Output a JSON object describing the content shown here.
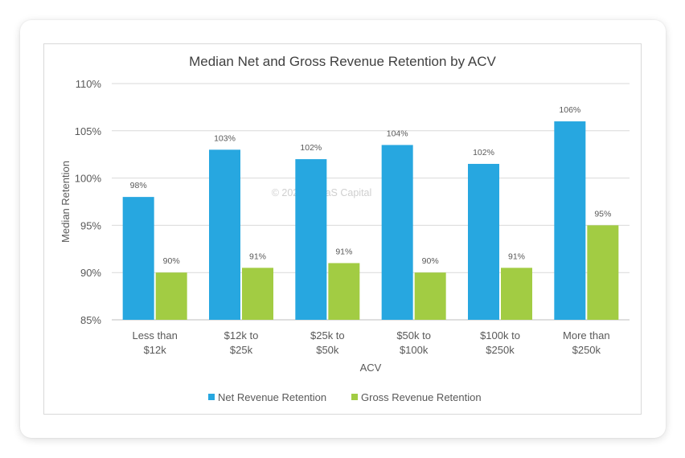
{
  "watermark": "© 2025 - SaaS Capital",
  "chart_data": {
    "type": "bar",
    "title": "Median Net and Gross Revenue Retention by ACV",
    "xlabel": "ACV",
    "ylabel": "Median Retention",
    "ylim": [
      85,
      110
    ],
    "y_ticks": [
      "85%",
      "90%",
      "95%",
      "100%",
      "105%",
      "110%"
    ],
    "y_tick_values": [
      85,
      90,
      95,
      100,
      105,
      110
    ],
    "grid": true,
    "legend_position": "bottom",
    "categories": [
      [
        "Less than",
        "$12k"
      ],
      [
        "$12k to",
        "$25k"
      ],
      [
        "$25k to",
        "$50k"
      ],
      [
        "$50k to",
        "$100k"
      ],
      [
        "$100k to",
        "$250k"
      ],
      [
        "More than",
        "$250k"
      ]
    ],
    "series": [
      {
        "name": "Net Revenue Retention",
        "color": "#27a7e0",
        "values": [
          98,
          103,
          102,
          103.5,
          101.5,
          106
        ],
        "labels": [
          "98%",
          "103%",
          "102%",
          "104%",
          "102%",
          "106%"
        ]
      },
      {
        "name": "Gross Revenue Retention",
        "color": "#a2cc43",
        "values": [
          90,
          90.5,
          91,
          90,
          90.5,
          95
        ],
        "labels": [
          "90%",
          "91%",
          "91%",
          "90%",
          "91%",
          "95%"
        ]
      }
    ]
  }
}
